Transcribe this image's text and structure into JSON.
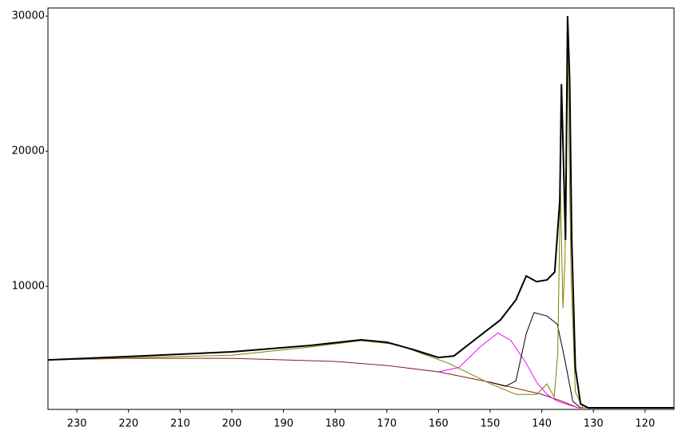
{
  "chart_data": {
    "type": "line",
    "xlim": [
      235.6,
      114.4
    ],
    "ylim": [
      890,
      30600
    ],
    "xticks": [
      230,
      220,
      210,
      200,
      190,
      180,
      170,
      160,
      150,
      140,
      130,
      120
    ],
    "yticks": [
      10000,
      20000,
      30000
    ],
    "series": [
      {
        "color": "#8b1a1a",
        "x": [
          235.6,
          220,
          200,
          180,
          170,
          160,
          150,
          140,
          136,
          133,
          114.4
        ],
        "values": [
          4556,
          4670,
          4670,
          4440,
          4140,
          3670,
          2900,
          2010,
          1480,
          1010,
          1010
        ]
      },
      {
        "color": "#ff00ff",
        "x": [
          160,
          156,
          152,
          148.5,
          146,
          143,
          141,
          139,
          137,
          133,
          114.4
        ],
        "values": [
          3670,
          4000,
          5500,
          6550,
          6000,
          4300,
          2900,
          2000,
          1500,
          1010,
          1010
        ]
      },
      {
        "color": "#000000",
        "x": [
          150,
          147,
          145,
          143,
          141.5,
          139,
          137,
          135.5,
          134,
          132.5,
          114.4
        ],
        "values": [
          2900,
          2600,
          3000,
          6500,
          8050,
          7800,
          7200,
          4500,
          1500,
          1010,
          1010
        ]
      },
      {
        "color": "#808000",
        "x": [
          235.6,
          200,
          185,
          175,
          168,
          163,
          158,
          150,
          145,
          141,
          139,
          137.6,
          136.9,
          136.4,
          135.9,
          135.5,
          135,
          134.3,
          133.5,
          132,
          114.4
        ],
        "values": [
          4556,
          4900,
          5500,
          5980,
          5700,
          5000,
          4300,
          2800,
          2000,
          2000,
          2780,
          1800,
          5000,
          17280,
          8400,
          12000,
          27340,
          10470,
          2190,
          1010,
          1010
        ]
      },
      {
        "color": "#000000",
        "x": [
          235.6,
          220,
          200,
          185,
          175,
          170,
          165,
          160,
          157,
          153,
          148,
          145,
          143,
          141,
          139,
          137.5,
          136.5,
          136.2,
          135.8,
          135.4,
          135,
          134.6,
          134.2,
          133.5,
          132.5,
          131,
          114.4
        ],
        "values": [
          4556,
          4800,
          5150,
          5620,
          6040,
          5860,
          5330,
          4730,
          4850,
          6040,
          7510,
          9000,
          10770,
          10350,
          10470,
          11060,
          16390,
          24970,
          19350,
          13430,
          30000,
          25270,
          13430,
          3960,
          1300,
          1010,
          1010
        ]
      }
    ]
  }
}
